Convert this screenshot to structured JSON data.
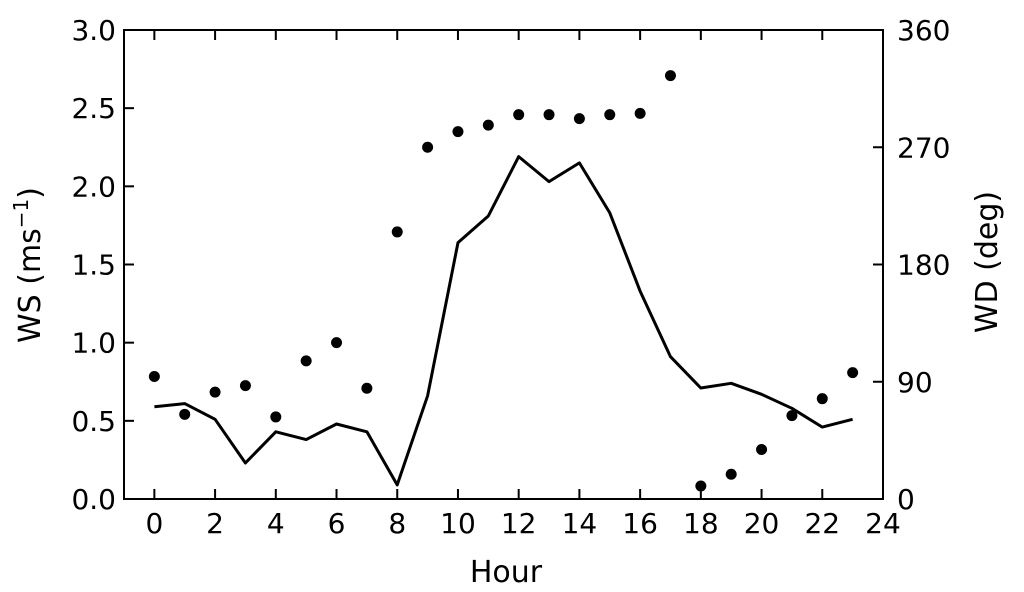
{
  "chart_data": {
    "type": "line",
    "xlabel": "Hour",
    "ylabel_left": "WS (ms",
    "ylabel_left_sup": "−1",
    "ylabel_left_tail": ")",
    "ylabel_right": "WD (deg)",
    "xlim": [
      -1,
      24
    ],
    "ylim_left": [
      0,
      3.0
    ],
    "ylim_right": [
      0,
      360
    ],
    "x_ticks": [
      0,
      2,
      4,
      6,
      8,
      10,
      12,
      14,
      16,
      18,
      20,
      22,
      24
    ],
    "x_tick_labels": [
      "0",
      "2",
      "4",
      "6",
      "8",
      "10",
      "12",
      "14",
      "16",
      "18",
      "20",
      "22",
      "24"
    ],
    "y_left_ticks": [
      0,
      0.5,
      1.0,
      1.5,
      2.0,
      2.5,
      3.0
    ],
    "y_left_tick_labels": [
      "0.0",
      "0.5",
      "1.0",
      "1.5",
      "2.0",
      "2.5",
      "3.0"
    ],
    "y_right_ticks": [
      0,
      90,
      180,
      270,
      360
    ],
    "y_right_tick_labels": [
      "0",
      "90",
      "180",
      "270",
      "360"
    ],
    "grid": false,
    "x": [
      0,
      1,
      2,
      3,
      4,
      5,
      6,
      7,
      8,
      9,
      10,
      11,
      12,
      13,
      14,
      15,
      16,
      17,
      18,
      19,
      20,
      21,
      22,
      23
    ],
    "series": [
      {
        "axis": "left",
        "style": "line",
        "color": "#000000",
        "values": [
          0.59,
          0.61,
          0.51,
          0.23,
          0.43,
          0.38,
          0.48,
          0.43,
          0.09,
          0.66,
          1.64,
          1.81,
          2.19,
          2.03,
          2.15,
          1.83,
          1.33,
          0.91,
          0.71,
          0.74,
          0.67,
          0.58,
          0.46,
          0.51
        ]
      },
      {
        "axis": "right",
        "style": "markers",
        "color": "#000000",
        "values": [
          94,
          65,
          82,
          87,
          63,
          106,
          120,
          85,
          205,
          270,
          282,
          287,
          295,
          295,
          292,
          295,
          296,
          325,
          10,
          19,
          38,
          64,
          77,
          97
        ]
      }
    ]
  }
}
